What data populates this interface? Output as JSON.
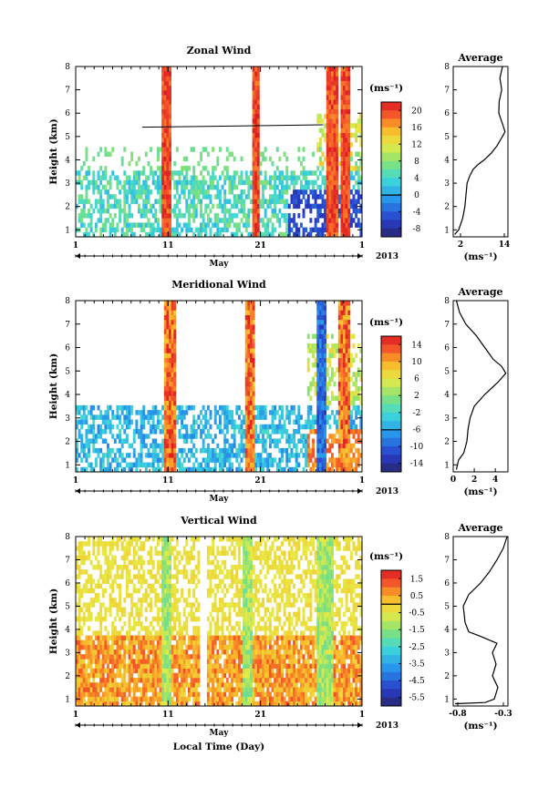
{
  "chart_data": [
    {
      "type": "heatmap",
      "title": "Zonal Wind",
      "ylabel": "Height (km)",
      "xlabel": "",
      "x_tick_labels": [
        "1",
        "11",
        "21",
        "1"
      ],
      "month_label": "May",
      "year_label": "2013",
      "y_ticks": [
        1,
        2,
        3,
        4,
        5,
        6,
        7,
        8
      ],
      "ylim": [
        0.7,
        8
      ],
      "colorbar": {
        "unit": "(ms⁻¹)",
        "ticks": [
          "20",
          "16",
          "12",
          "8",
          "4",
          "0",
          "-4",
          "-8"
        ],
        "range": [
          -10,
          22
        ]
      },
      "profile": {
        "title": "Average",
        "xlabel": "(ms⁻¹)",
        "x_ticks": [
          "2",
          "14"
        ],
        "xlim": [
          0,
          15
        ],
        "points": [
          [
            0.4,
            0.8
          ],
          [
            1.5,
            1.0
          ],
          [
            2.6,
            1.5
          ],
          [
            3.2,
            2.0
          ],
          [
            3.5,
            2.5
          ],
          [
            3.8,
            3.0
          ],
          [
            4.5,
            3.3
          ],
          [
            5.5,
            3.6
          ],
          [
            6.8,
            3.8
          ],
          [
            8.5,
            4.0
          ],
          [
            10.5,
            4.3
          ],
          [
            12.0,
            4.6
          ],
          [
            13.5,
            5.0
          ],
          [
            14.2,
            5.2
          ],
          [
            13.6,
            5.5
          ],
          [
            12.5,
            6.0
          ],
          [
            12.6,
            6.5
          ],
          [
            13.3,
            7.0
          ],
          [
            12.8,
            7.5
          ],
          [
            13.5,
            8.0
          ]
        ]
      }
    },
    {
      "type": "heatmap",
      "title": "Meridional Wind",
      "ylabel": "Height (km)",
      "xlabel": "",
      "x_tick_labels": [
        "1",
        "11",
        "21",
        "1"
      ],
      "month_label": "May",
      "year_label": "2013",
      "y_ticks": [
        1,
        2,
        3,
        4,
        5,
        6,
        7,
        8
      ],
      "ylim": [
        0.7,
        8
      ],
      "colorbar": {
        "unit": "(ms⁻¹)",
        "ticks": [
          "14",
          "10",
          "6",
          "2",
          "-2",
          "-6",
          "-10",
          "-14"
        ],
        "range": [
          -16,
          16
        ]
      },
      "profile": {
        "title": "Average",
        "xlabel": "(ms⁻¹)",
        "x_ticks": [
          "0",
          "2",
          "4"
        ],
        "xlim": [
          0,
          5.2
        ],
        "points": [
          [
            0.3,
            0.8
          ],
          [
            0.5,
            1.2
          ],
          [
            1.0,
            1.5
          ],
          [
            1.3,
            2.0
          ],
          [
            1.4,
            2.5
          ],
          [
            1.6,
            3.0
          ],
          [
            2.0,
            3.5
          ],
          [
            3.0,
            4.0
          ],
          [
            4.2,
            4.5
          ],
          [
            5.0,
            4.9
          ],
          [
            4.6,
            5.2
          ],
          [
            3.8,
            5.5
          ],
          [
            3.0,
            6.0
          ],
          [
            2.2,
            6.5
          ],
          [
            1.2,
            7.0
          ],
          [
            0.6,
            7.5
          ],
          [
            0.3,
            8.0
          ]
        ]
      }
    },
    {
      "type": "heatmap",
      "title": "Vertical Wind",
      "ylabel": "Height (km)",
      "xlabel": "Local Time (Day)",
      "x_tick_labels": [
        "1",
        "11",
        "21",
        "1"
      ],
      "month_label": "May",
      "year_label": "2013",
      "y_ticks": [
        1,
        2,
        3,
        4,
        5,
        6,
        7,
        8
      ],
      "ylim": [
        0.7,
        8
      ],
      "colorbar": {
        "unit": "(ms⁻¹)",
        "ticks": [
          "1.5",
          "0.5",
          "-0.5",
          "-1.5",
          "-2.5",
          "-3.5",
          "-4.5",
          "-5.5"
        ],
        "range": [
          -6.5,
          2.5
        ]
      },
      "profile": {
        "title": "Average",
        "xlabel": "(ms⁻¹)",
        "x_ticks": [
          "-0.8",
          "-0.3"
        ],
        "xlim": [
          -0.85,
          -0.25
        ],
        "points": [
          [
            -0.83,
            0.8
          ],
          [
            -0.5,
            0.85
          ],
          [
            -0.4,
            1.0
          ],
          [
            -0.36,
            1.5
          ],
          [
            -0.42,
            2.0
          ],
          [
            -0.38,
            2.5
          ],
          [
            -0.42,
            3.0
          ],
          [
            -0.37,
            3.4
          ],
          [
            -0.55,
            3.7
          ],
          [
            -0.68,
            3.9
          ],
          [
            -0.72,
            4.3
          ],
          [
            -0.74,
            5.0
          ],
          [
            -0.68,
            5.5
          ],
          [
            -0.55,
            6.0
          ],
          [
            -0.45,
            6.5
          ],
          [
            -0.37,
            7.0
          ],
          [
            -0.3,
            7.5
          ],
          [
            -0.26,
            8.0
          ]
        ]
      }
    }
  ]
}
